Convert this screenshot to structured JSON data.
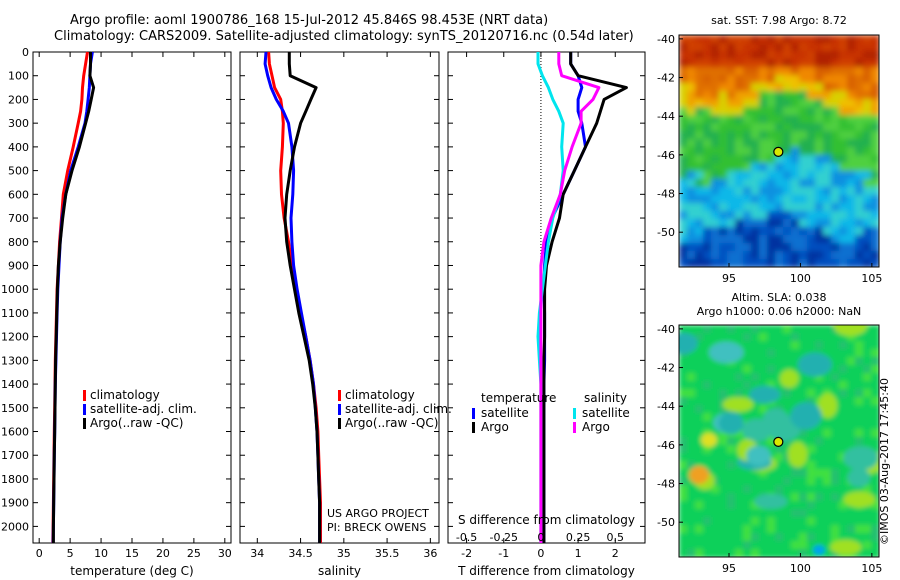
{
  "header": {
    "line1": "Argo profile: aoml 1900786_168 15-Jul-2012 45.846S 98.453E (NRT data)",
    "line2": "Climatology: CARS2009. Satellite-adjusted climatology: synTS_20120716.nc (0.54d later)"
  },
  "colors": {
    "climatology": "#ff0000",
    "satellite": "#0000ff",
    "argo": "#000000",
    "s_satellite": "#00e5ee",
    "s_argo": "#ff00ff"
  },
  "credits": {
    "project": "US ARGO PROJECT",
    "pi": "PI: BRECK OWENS"
  },
  "stamp": "©IMOS 03-Aug-2017 17:45:40",
  "chart_data": [
    {
      "type": "line",
      "xlabel": "temperature (deg C)",
      "xlim": [
        -1,
        31
      ],
      "xticks": [
        0,
        5,
        10,
        15,
        20,
        25,
        30
      ],
      "ylim": [
        2070,
        0
      ],
      "yticks": [
        0,
        100,
        200,
        300,
        400,
        500,
        600,
        700,
        800,
        900,
        1000,
        1100,
        1200,
        1300,
        1400,
        1500,
        1600,
        1700,
        1800,
        1900,
        2000
      ],
      "y": [
        0,
        50,
        100,
        150,
        200,
        250,
        300,
        400,
        500,
        600,
        700,
        800,
        900,
        1000,
        1100,
        1200,
        1300,
        1400,
        1500,
        1600,
        1700,
        1800,
        1900,
        2000,
        2070
      ],
      "legend": [
        "climatology",
        "satellite-adj. clim.",
        "Argo(..raw -QC)"
      ],
      "series": [
        {
          "name": "climatology",
          "color": "#ff0000",
          "values": [
            7.8,
            7.5,
            7.2,
            7.0,
            6.9,
            6.7,
            6.3,
            5.5,
            4.6,
            3.9,
            3.6,
            3.3,
            3.1,
            2.9,
            2.8,
            2.7,
            2.6,
            2.55,
            2.5,
            2.45,
            2.4,
            2.35,
            2.3,
            2.25,
            2.2
          ]
        },
        {
          "name": "satellite-adj. clim.",
          "color": "#0000ff",
          "values": [
            8.6,
            8.3,
            8.2,
            8.1,
            7.9,
            7.7,
            7.4,
            6.3,
            5.1,
            4.3,
            3.7,
            3.4,
            3.2,
            3.0,
            2.9,
            2.8,
            2.7,
            2.6,
            2.55,
            2.5,
            2.45,
            2.4,
            2.35,
            2.3,
            2.25
          ]
        },
        {
          "name": "Argo(..raw -QC)",
          "color": "#000000",
          "values": [
            8.3,
            8.3,
            8.2,
            8.8,
            8.4,
            8.0,
            7.5,
            6.5,
            5.3,
            4.3,
            3.8,
            3.4,
            3.1,
            2.95,
            2.85,
            2.75,
            2.65,
            2.6,
            2.55,
            2.5,
            2.45,
            2.4,
            2.35,
            2.3,
            2.3
          ]
        }
      ]
    },
    {
      "type": "line",
      "xlabel": "salinity",
      "xlim": [
        33.8,
        36.1
      ],
      "xticks": [
        34,
        34.5,
        35,
        35.5,
        36
      ],
      "ylim": [
        2070,
        0
      ],
      "y": [
        0,
        50,
        100,
        150,
        200,
        250,
        300,
        400,
        500,
        600,
        700,
        800,
        900,
        1000,
        1100,
        1200,
        1300,
        1400,
        1500,
        1600,
        1700,
        1800,
        1900,
        2000,
        2070
      ],
      "legend": [
        "climatology",
        "satellite-adj. clim.",
        "Argo(..raw -QC)"
      ],
      "series": [
        {
          "name": "climatology",
          "color": "#ff0000",
          "values": [
            34.13,
            34.14,
            34.17,
            34.2,
            34.27,
            34.29,
            34.3,
            34.29,
            34.27,
            34.28,
            34.31,
            34.36,
            34.4,
            34.45,
            34.5,
            34.56,
            34.61,
            34.65,
            34.68,
            34.7,
            34.71,
            34.72,
            34.73,
            34.73,
            34.73
          ]
        },
        {
          "name": "satellite-adj. clim.",
          "color": "#0000ff",
          "values": [
            34.1,
            34.09,
            34.12,
            34.16,
            34.22,
            34.3,
            34.36,
            34.4,
            34.42,
            34.41,
            34.39,
            34.4,
            34.42,
            34.46,
            34.51,
            34.56,
            34.61,
            34.65,
            34.67,
            34.69,
            34.7,
            34.71,
            34.72,
            34.72,
            34.72
          ]
        },
        {
          "name": "Argo(..raw -QC)",
          "color": "#000000",
          "values": [
            34.37,
            34.37,
            34.38,
            34.68,
            34.62,
            34.56,
            34.5,
            34.43,
            34.38,
            34.34,
            34.32,
            34.34,
            34.38,
            34.43,
            34.48,
            34.54,
            34.6,
            34.64,
            34.67,
            34.69,
            34.7,
            34.71,
            34.72,
            34.72,
            34.72
          ]
        }
      ]
    },
    {
      "type": "line",
      "xlabel": "T difference from climatology",
      "xlabel_top": "S difference from climatology",
      "xlim": [
        -2.5,
        2.8
      ],
      "xticks": [
        -2,
        -1,
        0,
        1,
        2
      ],
      "xticks_salinity": [
        -0.5,
        -0.25,
        0,
        0.25,
        0.5
      ],
      "ylim": [
        2070,
        0
      ],
      "y": [
        0,
        50,
        100,
        150,
        200,
        250,
        300,
        400,
        500,
        600,
        700,
        800,
        900,
        1000,
        1100,
        1200,
        1300,
        1400,
        1500,
        1600,
        1700,
        1800,
        1900,
        2000,
        2070
      ],
      "legend_temperature": {
        "title": "temperature",
        "items": [
          "satellite",
          "Argo"
        ]
      },
      "legend_salinity": {
        "title": "salinity",
        "items": [
          "satellite",
          "Argo"
        ]
      },
      "series": [
        {
          "name": "satellite",
          "group": "temperature",
          "color": "#0000ff",
          "values": [
            0.8,
            0.8,
            1.0,
            1.1,
            1.0,
            1.0,
            1.1,
            1.2,
            0.9,
            0.6,
            0.3,
            0.15,
            0.1,
            0.08,
            0.1,
            0.1,
            0.1,
            0.08,
            0.08,
            0.08,
            0.08,
            0.08,
            0.08,
            0.08,
            0.08
          ]
        },
        {
          "name": "Argo",
          "group": "temperature",
          "color": "#000000",
          "values": [
            0.8,
            0.8,
            1.0,
            2.3,
            1.7,
            1.6,
            1.5,
            1.2,
            0.9,
            0.6,
            0.5,
            0.3,
            0.15,
            0.1,
            0.1,
            0.1,
            0.08,
            0.08,
            0.08,
            0.08,
            0.08,
            0.08,
            0.08,
            0.08,
            0.08
          ]
        },
        {
          "name": "satellite",
          "group": "salinity",
          "color": "#00e5ee",
          "values": [
            -0.02,
            -0.02,
            0.01,
            0.05,
            0.08,
            0.12,
            0.15,
            0.14,
            0.15,
            0.13,
            0.08,
            0.05,
            0.03,
            0.01,
            -0.01,
            -0.02,
            -0.01,
            0.0,
            0.0,
            0.0,
            0.0,
            0.0,
            0.0,
            0.0,
            0.0
          ]
        },
        {
          "name": "Argo",
          "group": "salinity",
          "color": "#ff00ff",
          "values": [
            0.12,
            0.12,
            0.14,
            0.39,
            0.35,
            0.27,
            0.27,
            0.21,
            0.16,
            0.13,
            0.07,
            0.02,
            0.0,
            0.0,
            0.0,
            0.0,
            0.0,
            0.0,
            0.0,
            0.0,
            0.0,
            0.0,
            0.0,
            0.0,
            0.0
          ]
        }
      ]
    },
    {
      "type": "heatmap",
      "title": "sat. SST: 7.98 Argo: 8.72",
      "xlim": [
        91.5,
        105.5
      ],
      "ylim": [
        -51.8,
        -39.8
      ],
      "xticks": [
        95,
        100,
        105
      ],
      "yticks": [
        -40,
        -42,
        -44,
        -46,
        -48,
        -50
      ],
      "marker": {
        "lon": 98.453,
        "lat": -45.846
      }
    },
    {
      "type": "heatmap",
      "title_lines": [
        "Altim. SLA: 0.038",
        "Argo h1000: 0.06 h2000: NaN"
      ],
      "xlim": [
        91.5,
        105.5
      ],
      "ylim": [
        -51.8,
        -39.8
      ],
      "xticks": [
        95,
        100,
        105
      ],
      "yticks": [
        -40,
        -42,
        -44,
        -46,
        -48,
        -50
      ],
      "marker": {
        "lon": 98.453,
        "lat": -45.846
      }
    }
  ]
}
